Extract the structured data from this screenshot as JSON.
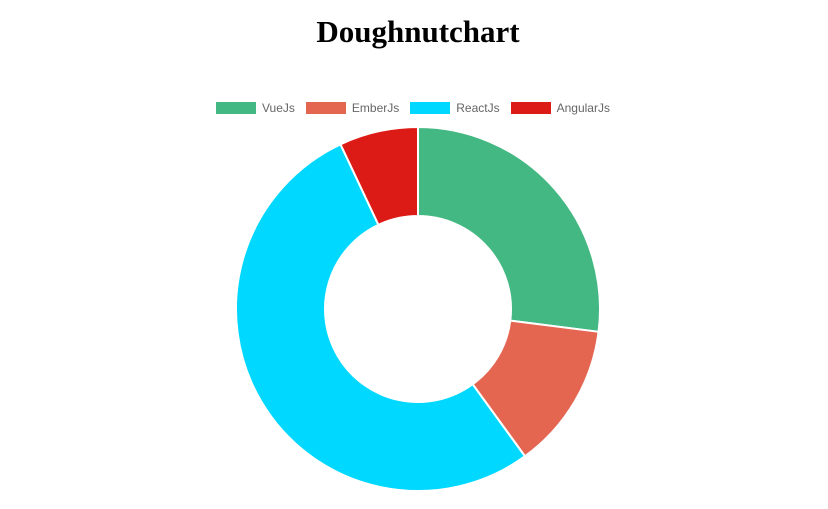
{
  "chart_data": {
    "type": "doughnut",
    "title": "Doughnutchart",
    "categories": [
      "VueJs",
      "EmberJs",
      "ReactJs",
      "AngularJs"
    ],
    "values": [
      27,
      13,
      53,
      7
    ],
    "colors": [
      "#44b883",
      "#e46651",
      "#00d8ff",
      "#dd1b16"
    ],
    "legend_position": "top"
  }
}
